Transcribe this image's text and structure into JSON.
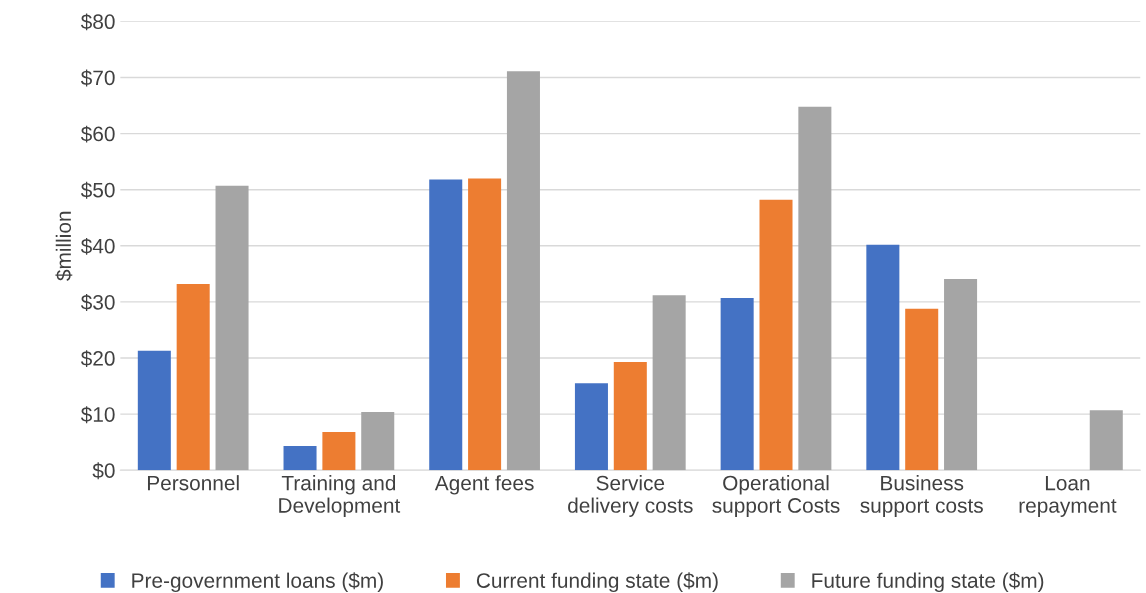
{
  "chart_data": {
    "type": "bar",
    "ylabel": "$million",
    "categories": [
      "Personnel",
      "Training and\nDevelopment",
      "Agent fees",
      "Service\ndelivery costs",
      "Operational\nsupport Costs",
      "Business\nsupport costs",
      "Loan\nrepayment"
    ],
    "series": [
      {
        "name": "Pre-government loans ($m)",
        "color": "#4472c4",
        "values": [
          21.3,
          4.3,
          51.8,
          15.5,
          30.7,
          40.2,
          0
        ]
      },
      {
        "name": "Current funding state ($m)",
        "color": "#ed7d31",
        "values": [
          33.2,
          6.8,
          52.0,
          19.3,
          48.2,
          28.8,
          0
        ]
      },
      {
        "name": "Future funding state ($m)",
        "color": "#a5a5a5",
        "values": [
          50.7,
          10.4,
          71.1,
          31.2,
          64.8,
          34.1,
          10.7
        ]
      }
    ],
    "ylim": [
      0,
      80
    ],
    "yticks": [
      {
        "value": 0,
        "label": "$0"
      },
      {
        "value": 10,
        "label": "$10"
      },
      {
        "value": 20,
        "label": "$20"
      },
      {
        "value": 30,
        "label": "$30"
      },
      {
        "value": 40,
        "label": "$40"
      },
      {
        "value": 50,
        "label": "$50"
      },
      {
        "value": 60,
        "label": "$60"
      },
      {
        "value": 70,
        "label": "$70"
      },
      {
        "value": 80,
        "label": "$80"
      }
    ],
    "grid": "y",
    "legend": "bottom"
  }
}
